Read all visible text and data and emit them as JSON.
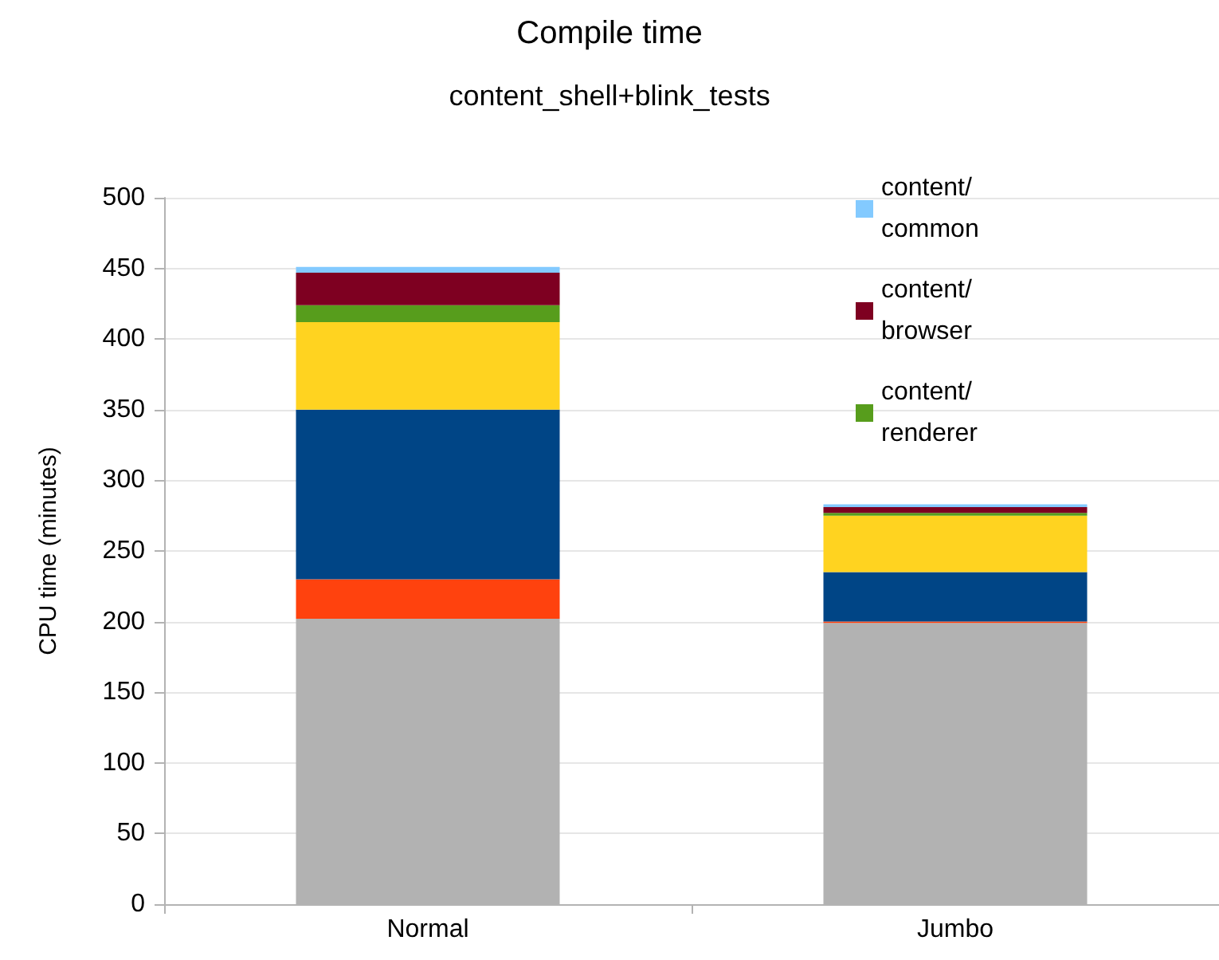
{
  "chart_data": {
    "type": "bar",
    "title": "Compile time",
    "subtitle": "content_shell+blink_tests",
    "ylabel": "CPU time (minutes)",
    "categories": [
      "Normal",
      "Jumbo"
    ],
    "stacked": true,
    "series": [
      {
        "color": "#b2b2b2",
        "values": [
          202,
          199
        ]
      },
      {
        "color": "#ff420e",
        "values": [
          28,
          1
        ]
      },
      {
        "color": "#004586",
        "values": [
          120,
          35
        ]
      },
      {
        "color": "#ffd320",
        "values": [
          62,
          40
        ]
      },
      {
        "name": "content/renderer",
        "color": "#579d1c",
        "values": [
          12,
          2
        ]
      },
      {
        "name": "content/browser",
        "color": "#7e0021",
        "values": [
          23,
          4
        ]
      },
      {
        "name": "content/common",
        "color": "#83caff",
        "values": [
          4,
          2
        ]
      }
    ],
    "ylim": [
      0,
      500
    ],
    "yticks": [
      0,
      50,
      100,
      150,
      200,
      250,
      300,
      350,
      400,
      450,
      500
    ],
    "grid": "y",
    "legend": "top right"
  }
}
